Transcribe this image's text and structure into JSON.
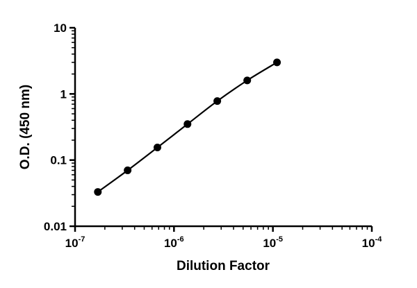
{
  "chart_data": {
    "type": "scatter",
    "title": "",
    "xlabel": "Dilution Factor",
    "ylabel": "O.D. (450 nm)",
    "xscale": "log",
    "yscale": "log",
    "xlim": [
      1e-07,
      0.0001
    ],
    "ylim": [
      0.01,
      10
    ],
    "x_ticks": [
      {
        "base": "10",
        "exp": "-7",
        "value": 1e-07
      },
      {
        "base": "10",
        "exp": "-6",
        "value": 1e-06
      },
      {
        "base": "10",
        "exp": "-5",
        "value": 1e-05
      },
      {
        "base": "10",
        "exp": "-4",
        "value": 0.0001
      }
    ],
    "y_ticks": [
      {
        "label": "10",
        "value": 10
      },
      {
        "label": "1",
        "value": 1
      },
      {
        "label": "0.1",
        "value": 0.1
      },
      {
        "label": "0.01",
        "value": 0.01
      }
    ],
    "grid": false,
    "legend": "none",
    "series": [
      {
        "color": "#000000",
        "marker": "circle",
        "fit_line": true,
        "points": [
          {
            "x": 1.7e-07,
            "y": 0.033
          },
          {
            "x": 3.4e-07,
            "y": 0.07
          },
          {
            "x": 6.8e-07,
            "y": 0.155
          },
          {
            "x": 1.37e-06,
            "y": 0.35
          },
          {
            "x": 2.74e-06,
            "y": 0.78
          },
          {
            "x": 5.5e-06,
            "y": 1.6
          },
          {
            "x": 1.1e-05,
            "y": 3.0
          }
        ]
      }
    ]
  }
}
